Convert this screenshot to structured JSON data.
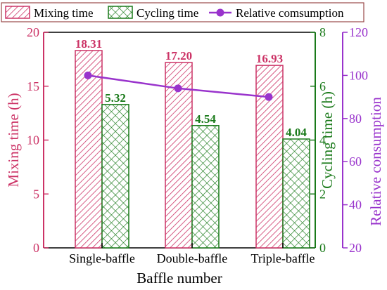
{
  "chart_data": {
    "type": "bar",
    "categories": [
      "Single-baffle",
      "Double-baffle",
      "Triple-baffle"
    ],
    "xlabel": "Baffle number",
    "series": [
      {
        "name": "Mixing time",
        "axis": "left",
        "values": [
          18.31,
          17.2,
          16.93
        ],
        "labels": [
          "18.31",
          "17.20",
          "16.93"
        ],
        "color": "#cc3366",
        "pattern": "diagonal-hatch"
      },
      {
        "name": "Cycling time",
        "axis": "right",
        "values": [
          5.32,
          4.54,
          4.04
        ],
        "labels": [
          "5.32",
          "4.54",
          "4.04"
        ],
        "color": "#1a7a1a",
        "pattern": "cross-hatch"
      },
      {
        "name": "Relative comsumption",
        "axis": "far-right",
        "type": "line",
        "values": [
          100.0,
          94.0,
          90.0
        ],
        "color": "#9933cc"
      }
    ],
    "axes": {
      "left": {
        "label": "Mixing time (h)",
        "ylim": [
          0,
          20
        ],
        "ticks": [
          "0",
          "5",
          "10",
          "15",
          "20"
        ],
        "color": "#cc3366"
      },
      "right": {
        "label": "Cycling time (h)",
        "ylim": [
          0,
          8
        ],
        "ticks": [
          "0",
          "2",
          "4",
          "6",
          "8"
        ],
        "color": "#1a7a1a"
      },
      "far_right": {
        "label": "Relative consumption",
        "ylim": [
          20,
          120
        ],
        "ticks": [
          "20",
          "40",
          "60",
          "80",
          "100",
          "120"
        ],
        "color": "#9933cc"
      }
    },
    "legend": {
      "placement": "top",
      "entries": [
        "Mixing time",
        "Cycling time",
        "Relative comsumption"
      ]
    },
    "grid": false
  }
}
